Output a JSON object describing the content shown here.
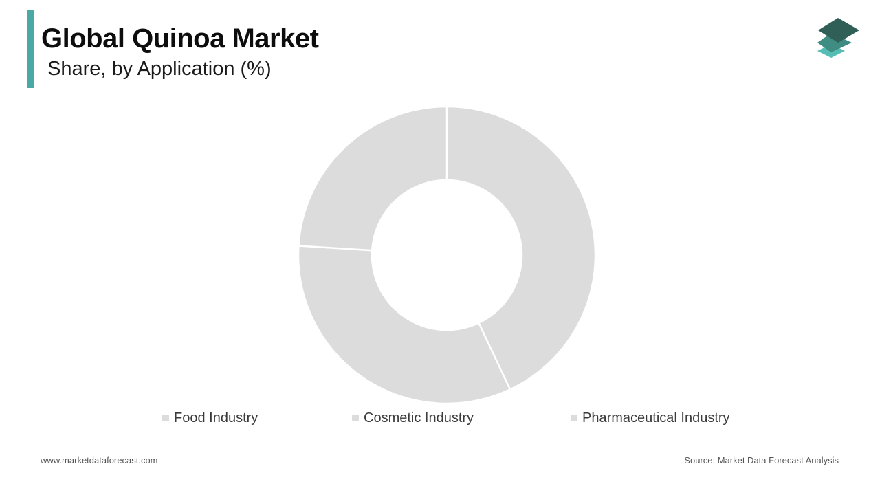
{
  "header": {
    "title": "Global Quinoa Market",
    "subtitle": "Share, by Application (%)"
  },
  "colors": {
    "accent": "#4aa9a4",
    "slice": "#dcdcdc",
    "separator": "#ffffff",
    "logo_top": "#2f5f57",
    "logo_mid": "#3f8c82",
    "logo_bottom": "#56bdb5"
  },
  "logo": {
    "icon": "stacked-layers-icon"
  },
  "chart_data": {
    "type": "pie",
    "variant": "donut",
    "categories": [
      "Food Industry",
      "Cosmetic Industry",
      "Pharmaceutical Industry"
    ],
    "values": [
      43,
      33,
      24
    ],
    "legend_position": "bottom"
  },
  "footer": {
    "website": "www.marketdataforecast.com",
    "source": "Source: Market Data Forecast Analysis"
  }
}
